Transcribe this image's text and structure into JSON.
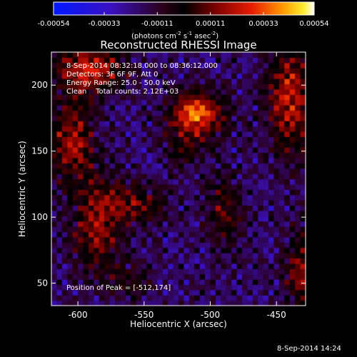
{
  "chart_data": {
    "type": "heatmap",
    "title": "Reconstructed RHESSI Image",
    "xlabel": "Heliocentric X (arcsec)",
    "ylabel": "Heliocentric Y (arcsec)",
    "xlim": [
      -620,
      -428
    ],
    "ylim": [
      33,
      225
    ],
    "x_ticks": [
      -600,
      -550,
      -500,
      -450
    ],
    "x_tick_labels": [
      "-600",
      "-550",
      "-500",
      "-450"
    ],
    "y_ticks": [
      50,
      100,
      150,
      200
    ],
    "y_tick_labels": [
      "50",
      "100",
      "150",
      "200"
    ],
    "colorbar": {
      "range": [
        -0.00054,
        0.00054
      ],
      "ticks": [
        -0.00054,
        -0.00033,
        -0.00011,
        0.00011,
        0.00033,
        0.00054
      ],
      "tick_labels": [
        "-0.00054",
        "-0.00033",
        "-0.00011",
        "0.00011",
        "0.00033",
        "0.00054"
      ],
      "unit": {
        "base": "(photons cm",
        "exp1": "-2",
        "mid1": " s",
        "exp2": "-1",
        "mid2": " asec",
        "exp3": "-2",
        "end": ")"
      }
    },
    "info_lines": [
      "8-Sep-2014 08:32:18.000 to 08:36:12.000",
      "Detectors: 3F 6F 9F, Att 0",
      "Energy Range: 25.0 - 50.0 keV",
      "Clean    Total counts: 2.12E+03"
    ],
    "peak_label": "Position of Peak = [-512,174]",
    "peak": [
      -512,
      174
    ],
    "bright_sources": [
      {
        "x": -510,
        "y": 178,
        "amp": 0.00054,
        "sx": 14,
        "sy": 12
      },
      {
        "x": -592,
        "y": 212,
        "amp": 0.00042,
        "sx": 18,
        "sy": 12
      },
      {
        "x": -440,
        "y": 190,
        "amp": 0.0004,
        "sx": 12,
        "sy": 30
      },
      {
        "x": -605,
        "y": 160,
        "amp": 0.00034,
        "sx": 12,
        "sy": 22
      },
      {
        "x": -585,
        "y": 95,
        "amp": 0.0003,
        "sx": 14,
        "sy": 28
      },
      {
        "x": -555,
        "y": 110,
        "amp": 0.00026,
        "sx": 16,
        "sy": 10
      },
      {
        "x": -490,
        "y": 105,
        "amp": 0.00022,
        "sx": 10,
        "sy": 20
      },
      {
        "x": -432,
        "y": 60,
        "amp": 0.0003,
        "sx": 8,
        "sy": 22
      },
      {
        "x": -520,
        "y": 150,
        "amp": 0.00018,
        "sx": 10,
        "sy": 8
      },
      {
        "x": -560,
        "y": 50,
        "amp": 0.00016,
        "sx": 10,
        "sy": 10
      }
    ],
    "colormap": [
      [
        0.0,
        "#0018ff"
      ],
      [
        0.22,
        "#3a10c0"
      ],
      [
        0.42,
        "#2a0018"
      ],
      [
        0.5,
        "#000000"
      ],
      [
        0.62,
        "#7a0000"
      ],
      [
        0.76,
        "#e81c00"
      ],
      [
        0.88,
        "#ff9a00"
      ],
      [
        0.96,
        "#ffee30"
      ],
      [
        1.0,
        "#ffffff"
      ]
    ],
    "grid": false
  },
  "footer": {
    "timestamp": "8-Sep-2014 14:24"
  }
}
